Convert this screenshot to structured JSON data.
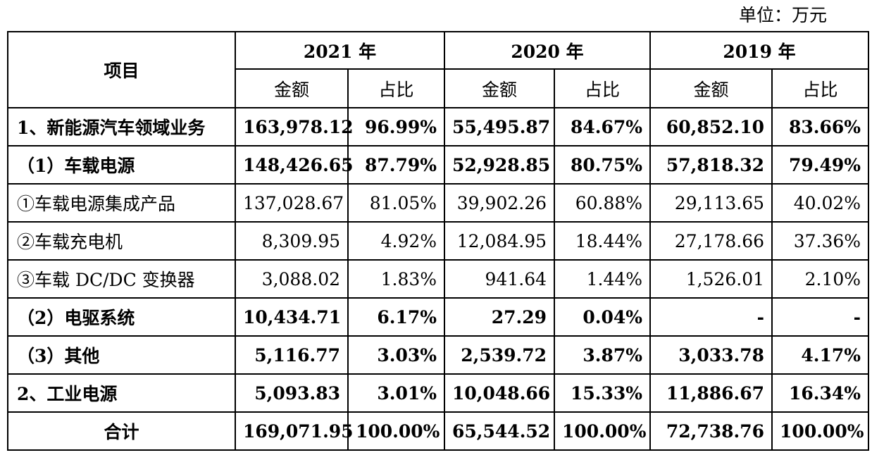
{
  "unit_label": "单位：万元",
  "header": {
    "item": "项目",
    "years": [
      "2021 年",
      "2020 年",
      "2019 年"
    ],
    "amount": "金额",
    "ratio": "占比"
  },
  "rows": [
    {
      "label": "1、新能源汽车领域业务",
      "bold": true,
      "align": "left",
      "values": [
        "163,978.12",
        "96.99%",
        "55,495.87",
        "84.67%",
        "60,852.10",
        "83.66%"
      ]
    },
    {
      "label": "（1）车载电源",
      "bold": true,
      "align": "left",
      "values": [
        "148,426.65",
        "87.79%",
        "52,928.85",
        "80.75%",
        "57,818.32",
        "79.49%"
      ]
    },
    {
      "label": "①车载电源集成产品",
      "bold": false,
      "align": "left",
      "values": [
        "137,028.67",
        "81.05%",
        "39,902.26",
        "60.88%",
        "29,113.65",
        "40.02%"
      ]
    },
    {
      "label": "②车载充电机",
      "bold": false,
      "align": "left",
      "values": [
        "8,309.95",
        "4.92%",
        "12,084.95",
        "18.44%",
        "27,178.66",
        "37.36%"
      ]
    },
    {
      "label": "③车载 DC/DC 变换器",
      "bold": false,
      "align": "left",
      "values": [
        "3,088.02",
        "1.83%",
        "941.64",
        "1.44%",
        "1,526.01",
        "2.10%"
      ]
    },
    {
      "label": "（2）电驱系统",
      "bold": true,
      "align": "left",
      "values": [
        "10,434.71",
        "6.17%",
        "27.29",
        "0.04%",
        "-",
        "-"
      ]
    },
    {
      "label": "（3）其他",
      "bold": true,
      "align": "left",
      "values": [
        "5,116.77",
        "3.03%",
        "2,539.72",
        "3.87%",
        "3,033.78",
        "4.17%"
      ]
    },
    {
      "label": "2、工业电源",
      "bold": true,
      "align": "left",
      "values": [
        "5,093.83",
        "3.01%",
        "10,048.66",
        "15.33%",
        "11,886.67",
        "16.34%"
      ]
    },
    {
      "label": "合计",
      "bold": true,
      "align": "center",
      "values": [
        "169,071.95",
        "100.00%",
        "65,544.52",
        "100.00%",
        "72,738.76",
        "100.00%"
      ]
    }
  ]
}
